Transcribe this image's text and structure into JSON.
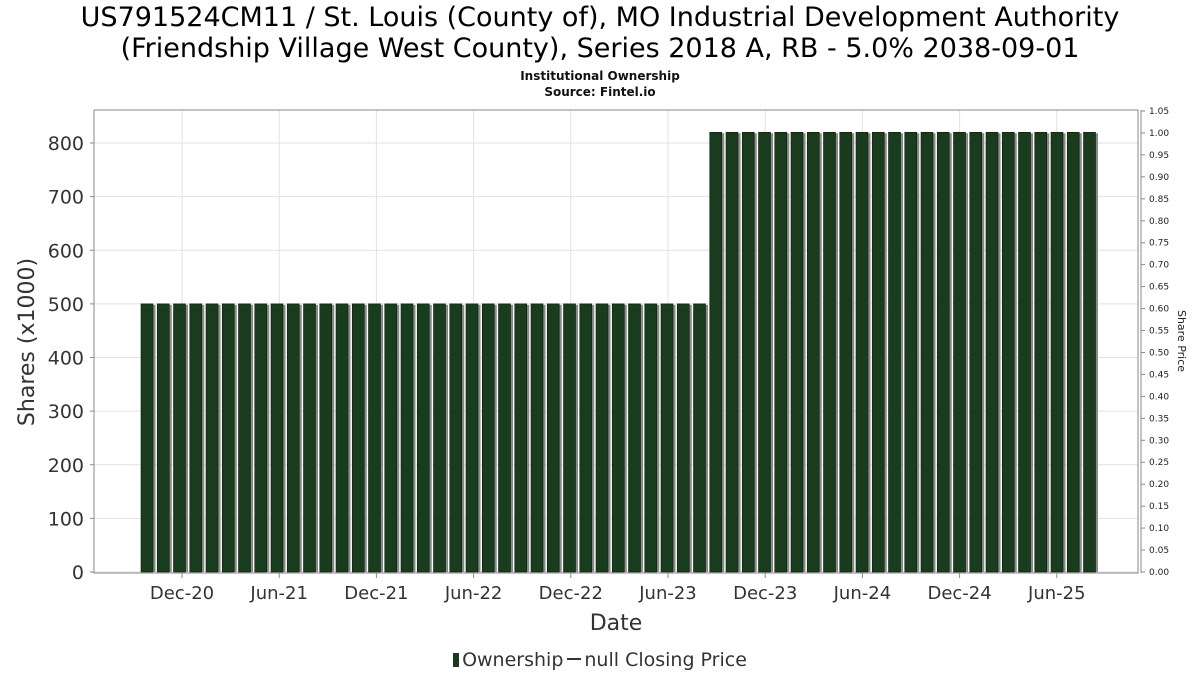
{
  "title": {
    "line1": "US791524CM11 / St. Louis (County of), MO Industrial Development Authority",
    "line2": "(Friendship Village West County), Series 2018 A, RB - 5.0% 2038-09-01",
    "sub1": "Institutional Ownership",
    "sub2": "Source: Fintel.io"
  },
  "legend": {
    "ownership": "Ownership",
    "price": "null Closing Price"
  },
  "colors": {
    "bar": "#1a3c1e",
    "bar_edge": "#0b1f0d",
    "bar_shadow": "#8a8a8a",
    "grid": "#e2e2e2",
    "axis": "#8a8a8a"
  },
  "chart_data": {
    "type": "bar",
    "title": "US791524CM11 / St. Louis (County of), MO Industrial Development Authority (Friendship Village West County), Series 2018 A, RB - 5.0% 2038-09-01",
    "xlabel": "Date",
    "ylabel": "Shares (x1000)",
    "y2label": "Share Price",
    "ylim": [
      0,
      860
    ],
    "y2lim": [
      0,
      1.05
    ],
    "yticks": [
      0,
      100,
      200,
      300,
      400,
      500,
      600,
      700,
      800
    ],
    "y2ticks": [
      "0.00",
      "0.05",
      "0.10",
      "0.15",
      "0.20",
      "0.25",
      "0.30",
      "0.35",
      "0.40",
      "0.45",
      "0.50",
      "0.55",
      "0.60",
      "0.65",
      "0.70",
      "0.75",
      "0.80",
      "0.85",
      "0.90",
      "0.95",
      "1.00",
      "1.05"
    ],
    "xticks": [
      "Dec-20",
      "Jun-21",
      "Dec-21",
      "Jun-22",
      "Dec-22",
      "Jun-23",
      "Dec-23",
      "Jun-24",
      "Dec-24",
      "Jun-25"
    ],
    "grid": true,
    "legend_position": "bottom-center",
    "series": [
      {
        "name": "Ownership",
        "values": [
          500,
          500,
          500,
          500,
          500,
          500,
          500,
          500,
          500,
          500,
          500,
          500,
          500,
          500,
          500,
          500,
          500,
          500,
          500,
          500,
          500,
          500,
          500,
          500,
          500,
          500,
          500,
          500,
          500,
          500,
          500,
          500,
          500,
          500,
          500,
          820,
          820,
          820,
          820,
          820,
          820,
          820,
          820,
          820,
          820,
          820,
          820,
          820,
          820,
          820,
          820,
          820,
          820,
          820,
          820,
          820,
          820,
          820,
          820
        ]
      }
    ]
  }
}
